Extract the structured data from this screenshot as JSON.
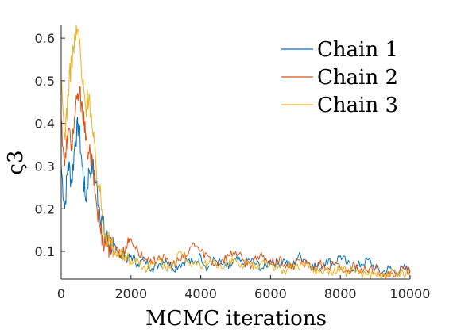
{
  "chart_data": {
    "type": "line",
    "xlabel": "MCMC iterations",
    "ylabel": "ς3",
    "xlim": [
      0,
      10000
    ],
    "ylim": [
      0.035,
      0.63
    ],
    "xticks": [
      0,
      2000,
      4000,
      6000,
      8000,
      10000
    ],
    "xtick_labels": [
      "0",
      "2000",
      "4000",
      "6000",
      "8000",
      "10000"
    ],
    "yticks": [
      0.1,
      0.2,
      0.3,
      0.4,
      0.5,
      0.6
    ],
    "ytick_labels": [
      "0.1",
      "0.2",
      "0.3",
      "0.4",
      "0.5",
      "0.6"
    ],
    "grid": false,
    "legend_position": "top-right",
    "series": [
      {
        "name": "Chain 1",
        "color": "#0072BD",
        "x": [
          0,
          100,
          200,
          300,
          400,
          500,
          600,
          700,
          800,
          900,
          1000,
          1100,
          1200,
          1300,
          1400,
          1500,
          1600,
          1700,
          1800,
          1900,
          2000,
          2200,
          2400,
          2600,
          2800,
          3000,
          3200,
          3400,
          3600,
          3800,
          4000,
          4200,
          4400,
          4600,
          4800,
          5000,
          5200,
          5400,
          5600,
          5800,
          6000,
          6200,
          6400,
          6600,
          6800,
          7000,
          7200,
          7400,
          7600,
          7800,
          8000,
          8200,
          8400,
          8600,
          8800,
          9000,
          9200,
          9400,
          9600,
          9800,
          10000
        ],
        "values": [
          0.3,
          0.2,
          0.31,
          0.26,
          0.36,
          0.4,
          0.3,
          0.22,
          0.29,
          0.3,
          0.26,
          0.2,
          0.16,
          0.13,
          0.12,
          0.11,
          0.1,
          0.09,
          0.1,
          0.08,
          0.09,
          0.07,
          0.08,
          0.06,
          0.07,
          0.08,
          0.06,
          0.07,
          0.08,
          0.07,
          0.09,
          0.06,
          0.08,
          0.07,
          0.06,
          0.08,
          0.07,
          0.08,
          0.07,
          0.06,
          0.08,
          0.07,
          0.08,
          0.06,
          0.09,
          0.08,
          0.07,
          0.06,
          0.08,
          0.07,
          0.09,
          0.07,
          0.06,
          0.07,
          0.08,
          0.06,
          0.05,
          0.06,
          0.05,
          0.06,
          0.055
        ]
      },
      {
        "name": "Chain 2",
        "color": "#D95319",
        "x": [
          0,
          100,
          200,
          300,
          400,
          500,
          600,
          700,
          800,
          900,
          1000,
          1100,
          1200,
          1300,
          1400,
          1500,
          1600,
          1700,
          1800,
          1900,
          2000,
          2200,
          2400,
          2600,
          2800,
          3000,
          3200,
          3400,
          3600,
          3800,
          4000,
          4200,
          4400,
          4600,
          4800,
          5000,
          5200,
          5400,
          5600,
          5800,
          6000,
          6200,
          6400,
          6600,
          6800,
          7000,
          7200,
          7400,
          7600,
          7800,
          8000,
          8200,
          8400,
          8600,
          8800,
          9000,
          9200,
          9400,
          9600,
          9800,
          10000
        ],
        "values": [
          0.41,
          0.3,
          0.38,
          0.35,
          0.42,
          0.47,
          0.45,
          0.36,
          0.33,
          0.3,
          0.22,
          0.16,
          0.13,
          0.12,
          0.11,
          0.1,
          0.11,
          0.09,
          0.1,
          0.12,
          0.13,
          0.1,
          0.08,
          0.07,
          0.09,
          0.08,
          0.07,
          0.08,
          0.09,
          0.12,
          0.1,
          0.09,
          0.07,
          0.08,
          0.09,
          0.1,
          0.08,
          0.07,
          0.08,
          0.09,
          0.07,
          0.08,
          0.07,
          0.06,
          0.08,
          0.07,
          0.06,
          0.07,
          0.06,
          0.07,
          0.06,
          0.05,
          0.07,
          0.06,
          0.05,
          0.06,
          0.05,
          0.04,
          0.05,
          0.06,
          0.05
        ]
      },
      {
        "name": "Chain 3",
        "color": "#EDB120",
        "x": [
          0,
          100,
          200,
          300,
          400,
          500,
          600,
          700,
          800,
          900,
          1000,
          1100,
          1200,
          1300,
          1400,
          1500,
          1600,
          1700,
          1800,
          1900,
          2000,
          2200,
          2400,
          2600,
          2800,
          3000,
          3200,
          3400,
          3600,
          3800,
          4000,
          4200,
          4400,
          4600,
          4800,
          5000,
          5200,
          5400,
          5600,
          5800,
          6000,
          6200,
          6400,
          6600,
          6800,
          7000,
          7200,
          7400,
          7600,
          7800,
          8000,
          8200,
          8400,
          8600,
          8800,
          9000,
          9200,
          9400,
          9600,
          9800,
          10000
        ],
        "values": [
          0.49,
          0.37,
          0.47,
          0.55,
          0.6,
          0.62,
          0.5,
          0.44,
          0.47,
          0.38,
          0.3,
          0.24,
          0.18,
          0.14,
          0.12,
          0.1,
          0.09,
          0.1,
          0.08,
          0.09,
          0.07,
          0.08,
          0.06,
          0.07,
          0.08,
          0.06,
          0.07,
          0.1,
          0.08,
          0.07,
          0.06,
          0.07,
          0.08,
          0.06,
          0.07,
          0.08,
          0.06,
          0.07,
          0.06,
          0.08,
          0.07,
          0.06,
          0.05,
          0.07,
          0.06,
          0.07,
          0.06,
          0.05,
          0.06,
          0.05,
          0.06,
          0.05,
          0.06,
          0.05,
          0.045,
          0.05,
          0.04,
          0.05,
          0.045,
          0.05,
          0.04
        ]
      }
    ]
  }
}
